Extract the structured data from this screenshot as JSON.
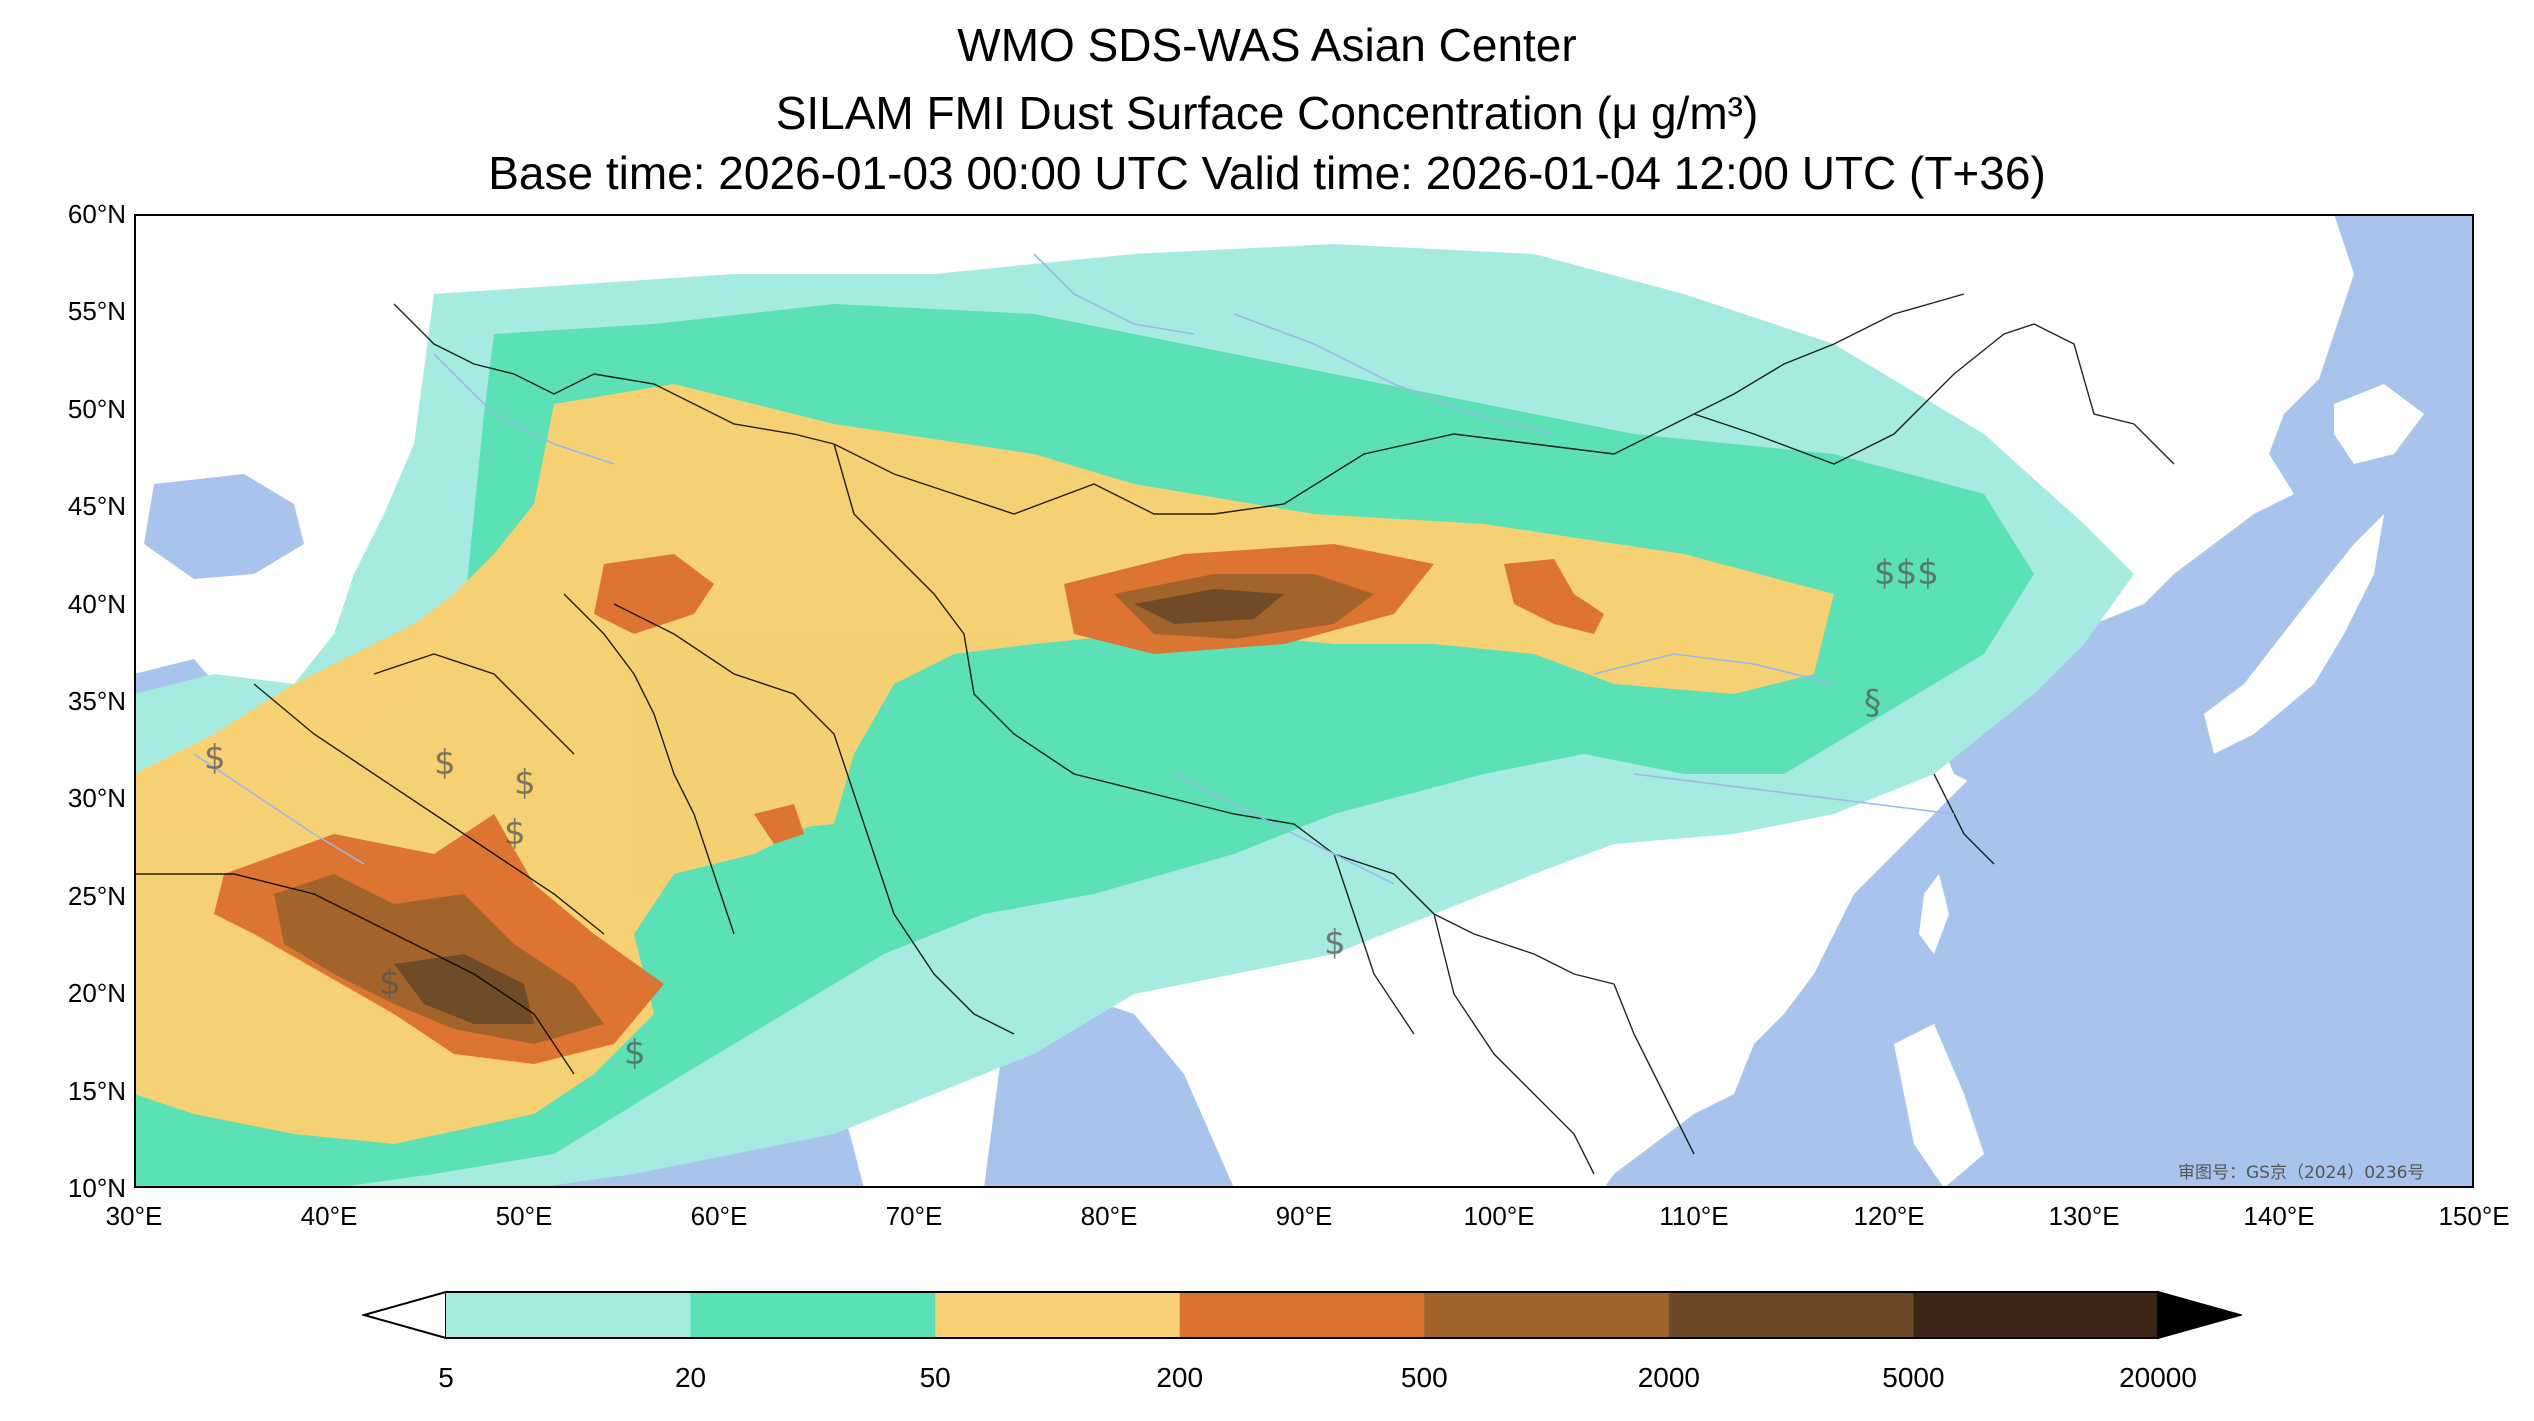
{
  "title": {
    "line1": "WMO SDS-WAS Asian Center",
    "line2": "SILAM FMI Dust Surface Concentration (μ g/m³)",
    "line3": "Base time: 2026-01-03 00:00 UTC Valid time: 2026-01-04 12:00 UTC (T+36)"
  },
  "axes": {
    "y_labels": [
      "60°N",
      "55°N",
      "50°N",
      "45°N",
      "40°N",
      "35°N",
      "30°N",
      "25°N",
      "20°N",
      "15°N",
      "10°N"
    ],
    "x_labels": [
      "30°E",
      "40°E",
      "50°E",
      "60°E",
      "70°E",
      "80°E",
      "90°E",
      "100°E",
      "110°E",
      "120°E",
      "130°E",
      "140°E",
      "150°E"
    ],
    "lon_range": [
      30,
      150
    ],
    "lat_range": [
      10,
      60
    ]
  },
  "watermark": "审图号：GS京（2024）0236号",
  "colorbar": {
    "labels": [
      "5",
      "20",
      "50",
      "200",
      "500",
      "2000",
      "5000",
      "20000"
    ],
    "colors": [
      "#a3ebe0",
      "#5ae0b4",
      "#f9d071",
      "#dc7230",
      "#a0642a",
      "#6e4a28",
      "#3c2618"
    ],
    "under_color": "#ffffff",
    "over_color": "#000000",
    "extend": "both"
  },
  "map_colors": {
    "ocean": "#a8c4ec",
    "land": "#ffffff",
    "border": "#000000"
  }
}
